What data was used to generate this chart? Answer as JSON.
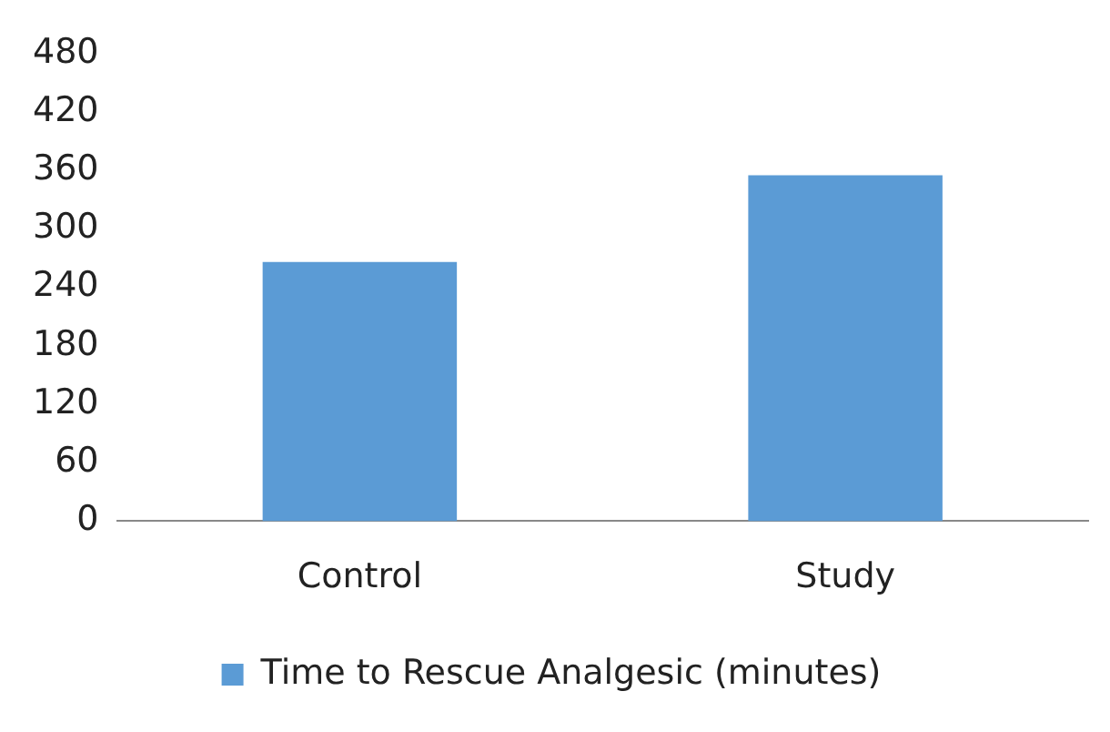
{
  "chart_data": {
    "type": "bar",
    "categories": [
      "Control",
      "Study"
    ],
    "series": [
      {
        "name": "Time to Rescue Analgesic (minutes)",
        "color": "#5b9bd5",
        "values": [
          266,
          355
        ]
      }
    ],
    "ylim": [
      0,
      480
    ],
    "yticks": [
      0,
      60,
      120,
      180,
      240,
      300,
      360,
      420,
      480
    ],
    "grid": false,
    "legend": "bottom"
  }
}
